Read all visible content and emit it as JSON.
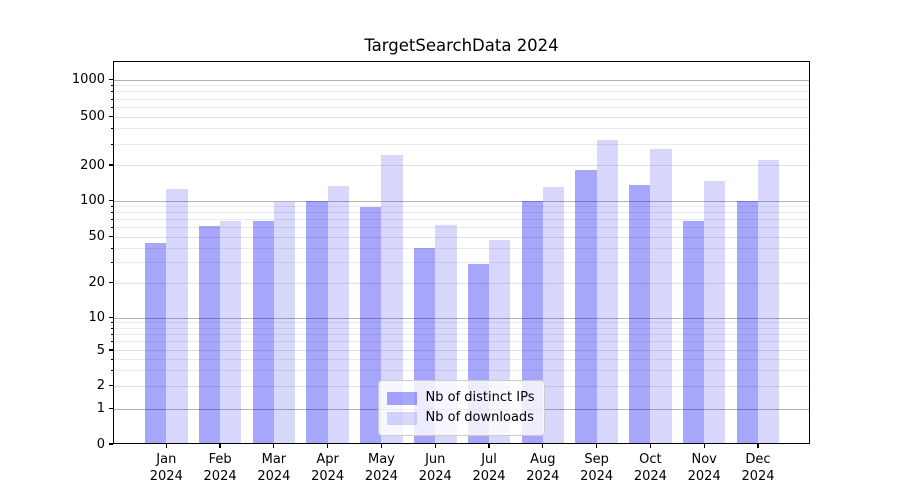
{
  "title": "TargetSearchData 2024",
  "chart_data": {
    "type": "bar",
    "title": "TargetSearchData 2024",
    "yscale": "symlog",
    "grid": "both",
    "legend_position": "lower center",
    "categories": [
      "Jan",
      "Feb",
      "Mar",
      "Apr",
      "May",
      "Jun",
      "Jul",
      "Aug",
      "Sep",
      "Oct",
      "Nov",
      "Dec"
    ],
    "x_year": "2024",
    "yticks": [
      0,
      1,
      2,
      5,
      10,
      20,
      50,
      100,
      200,
      500,
      1000
    ],
    "ylim": [
      0,
      1440
    ],
    "series": [
      {
        "name": "Nb of distinct IPs",
        "base_color": "#0d0df2",
        "alpha": 0.37,
        "values": [
          44,
          61,
          68,
          100,
          89,
          40,
          29,
          100,
          180,
          135,
          68,
          100
        ]
      },
      {
        "name": "Nb of downloads",
        "base_color": "#0d0df2",
        "alpha": 0.16,
        "values": [
          125,
          67,
          98,
          134,
          240,
          62,
          47,
          130,
          320,
          270,
          145,
          220
        ]
      }
    ],
    "legend_labels": [
      "Nb of distinct IPs",
      "Nb of downloads"
    ]
  }
}
